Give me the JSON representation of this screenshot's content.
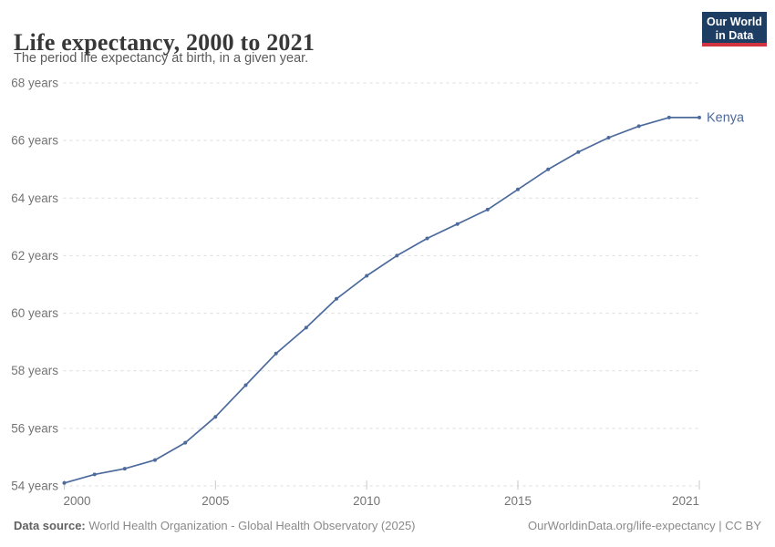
{
  "header": {
    "title": "Life expectancy, 2000 to 2021",
    "subtitle": "The period life expectancy at birth, in a given year.",
    "logo": {
      "line1": "Our World",
      "line2": "in Data",
      "bg_color": "#1d3d63",
      "accent_color": "#d0343f"
    }
  },
  "chart_data": {
    "type": "line",
    "title": "Life expectancy, 2000 to 2021",
    "xlabel": "",
    "ylabel": "",
    "xlim": [
      2000,
      2021
    ],
    "ylim": [
      54,
      68
    ],
    "grid": "horizontal-dashed",
    "legend_position": "end-of-line-label",
    "x": [
      2000,
      2001,
      2002,
      2003,
      2004,
      2005,
      2006,
      2007,
      2008,
      2009,
      2010,
      2011,
      2012,
      2013,
      2014,
      2015,
      2016,
      2017,
      2018,
      2019,
      2020,
      2021
    ],
    "series": [
      {
        "name": "Kenya",
        "color": "#4c6a9c",
        "values": [
          54.1,
          54.4,
          54.6,
          54.9,
          55.5,
          56.4,
          57.5,
          58.6,
          59.5,
          60.5,
          61.3,
          62.0,
          62.6,
          63.1,
          63.6,
          64.3,
          65.0,
          65.6,
          66.1,
          66.5,
          66.8,
          66.8
        ]
      }
    ],
    "x_ticks": [
      2000,
      2005,
      2010,
      2015,
      2021
    ],
    "y_ticks": [
      {
        "value": 54,
        "label": "54 years"
      },
      {
        "value": 56,
        "label": "56 years"
      },
      {
        "value": 58,
        "label": "58 years"
      },
      {
        "value": 60,
        "label": "60 years"
      },
      {
        "value": 62,
        "label": "62 years"
      },
      {
        "value": 64,
        "label": "64 years"
      },
      {
        "value": 66,
        "label": "66 years"
      },
      {
        "value": 68,
        "label": "68 years"
      }
    ]
  },
  "footer": {
    "source_label": "Data source:",
    "source_text": " World Health Organization - Global Health Observatory (2025)",
    "link_text": "OurWorldinData.org/life-expectancy | CC BY"
  }
}
